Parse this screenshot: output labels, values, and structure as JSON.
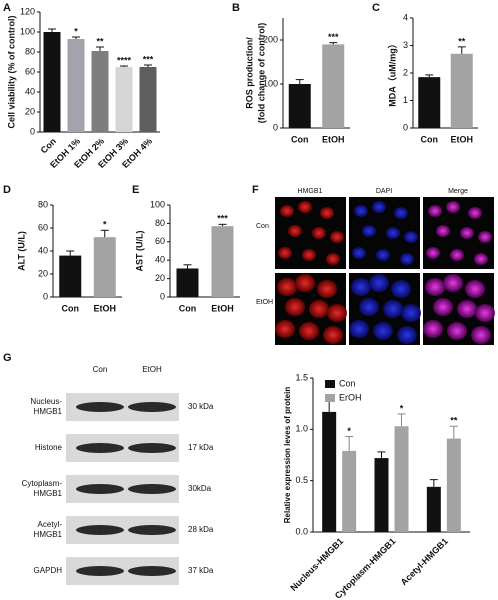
{
  "chart_data": [
    {
      "type": "bar",
      "panel": "A",
      "ylabel": "Cell viability (% of control)",
      "categories": [
        "Con",
        "EtOH 1%",
        "EtOH 2%",
        "EtOH 3%",
        "EtOH 4%"
      ],
      "values": [
        100,
        93,
        81,
        65,
        65
      ],
      "errors": [
        3,
        2,
        4,
        1,
        2
      ],
      "annotations": [
        null,
        "*",
        "**",
        "****",
        "***"
      ],
      "colors": [
        "#111111",
        "#a3a3ad",
        "#7d7d7d",
        "#d6d6d6",
        "#5e5e5e"
      ],
      "ylim": [
        0,
        120
      ],
      "yticks": [
        0,
        20,
        40,
        60,
        80,
        100,
        120
      ]
    },
    {
      "type": "bar",
      "panel": "B",
      "ylabel": [
        "ROS production/",
        "(fold change of control)"
      ],
      "categories": [
        "Con",
        "EtOH"
      ],
      "values": [
        100,
        190
      ],
      "errors": [
        10,
        4
      ],
      "annotations": [
        null,
        "***"
      ],
      "colors": [
        "#111111",
        "#a3a3a3"
      ],
      "ylim": [
        0,
        250
      ],
      "yticks": [
        0,
        100,
        200
      ]
    },
    {
      "type": "bar",
      "panel": "C",
      "ylabel": "MDA（uM/mg）",
      "categories": [
        "Con",
        "EtOH"
      ],
      "values": [
        1.85,
        2.7
      ],
      "errors": [
        0.08,
        0.25
      ],
      "annotations": [
        null,
        "**"
      ],
      "colors": [
        "#111111",
        "#a3a3a3"
      ],
      "ylim": [
        0,
        4
      ],
      "yticks": [
        0,
        1,
        2,
        3,
        4
      ]
    },
    {
      "type": "bar",
      "panel": "D",
      "ylabel": "ALT (U/L)",
      "categories": [
        "Con",
        "EtOH"
      ],
      "values": [
        36,
        52
      ],
      "errors": [
        4,
        6
      ],
      "annotations": [
        null,
        "*"
      ],
      "colors": [
        "#111111",
        "#a3a3a3"
      ],
      "ylim": [
        0,
        80
      ],
      "yticks": [
        0,
        20,
        40,
        60,
        80
      ]
    },
    {
      "type": "bar",
      "panel": "E",
      "ylabel": "AST (U/L)",
      "categories": [
        "Con",
        "EtOH"
      ],
      "values": [
        31,
        77
      ],
      "errors": [
        4,
        2
      ],
      "annotations": [
        null,
        "***"
      ],
      "colors": [
        "#111111",
        "#a3a3a3"
      ],
      "ylim": [
        0,
        100
      ],
      "yticks": [
        0,
        20,
        40,
        60,
        80,
        100
      ]
    },
    {
      "type": "grouped_bar",
      "panel": "G",
      "ylabel": "Relative expression leves of protein",
      "categories": [
        "Nucleus-HMGB1",
        "Cytoplasm-HMGB1",
        "Acetyl-HMGB1"
      ],
      "series": [
        {
          "name": "Con",
          "color": "#111111",
          "values": [
            1.17,
            0.72,
            0.44
          ],
          "errors": [
            0.15,
            0.06,
            0.07
          ]
        },
        {
          "name": "ErOH",
          "color": "#a3a3a3",
          "values": [
            0.79,
            1.03,
            0.91
          ],
          "errors": [
            0.14,
            0.12,
            0.12
          ],
          "annotations": [
            "*",
            "*",
            "**"
          ]
        }
      ],
      "ylim": [
        0,
        1.5
      ],
      "yticks": [
        {
          "value": 0,
          "label": "0.0"
        },
        0.5,
        {
          "value": 1,
          "label": "1.0"
        },
        1.5
      ]
    }
  ],
  "panel_f": {
    "label": "F",
    "columns": [
      "HMGB1",
      "DAPI",
      "Merge"
    ],
    "rows": [
      "Con",
      "EtOH"
    ]
  },
  "blot": {
    "columns": [
      "Con",
      "EtOH"
    ],
    "rows": [
      {
        "name": [
          "Nucleus-",
          "HMGB1"
        ],
        "size": "30 kDa"
      },
      {
        "name": [
          "Histone"
        ],
        "size": "17 kDa"
      },
      {
        "name": [
          "Cytoplasm-",
          "HMGB1"
        ],
        "size": "30kDa"
      },
      {
        "name": [
          "Acetyl-",
          "HMGB1"
        ],
        "size": "28 kDa"
      },
      {
        "name": [
          "GAPDH"
        ],
        "size": "37 kDa"
      }
    ]
  }
}
